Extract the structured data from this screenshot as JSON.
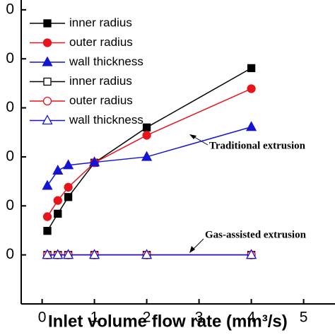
{
  "chart_data": {
    "type": "line",
    "xlabel": "Inlet volume flow rate (mm³/s)",
    "xlim": [
      -0.4,
      5.6
    ],
    "xticks": [
      0,
      1,
      2,
      3,
      4,
      5
    ],
    "ylim": [
      0,
      6.2
    ],
    "yticks": [
      {
        "value": 1,
        "label": "0"
      },
      {
        "value": 2,
        "label": "0"
      },
      {
        "value": 3,
        "label": "0"
      },
      {
        "value": 4,
        "label": "0"
      },
      {
        "value": 5,
        "label": "0"
      },
      {
        "value": 6,
        "label": "0"
      }
    ],
    "x": [
      0.1,
      0.3,
      0.5,
      1,
      2,
      4
    ],
    "series": [
      {
        "name": "inner radius",
        "color": "#000000",
        "marker": "square",
        "filled": true,
        "values": [
          1.49,
          1.84,
          2.18,
          2.88,
          3.6,
          4.81
        ]
      },
      {
        "name": "outer radius",
        "color": "#e8141c",
        "marker": "circle",
        "filled": true,
        "values": [
          1.78,
          2.11,
          2.38,
          2.88,
          3.44,
          4.39
        ]
      },
      {
        "name": "wall thickness",
        "color": "#1414d2",
        "marker": "triangle",
        "filled": true,
        "values": [
          2.41,
          2.72,
          2.83,
          2.89,
          3.0,
          3.61
        ]
      },
      {
        "name": "inner radius",
        "color": "#000000",
        "marker": "square",
        "filled": false,
        "values": [
          1.0,
          1.0,
          1.0,
          1.0,
          1.0,
          1.0
        ]
      },
      {
        "name": "outer radius",
        "color": "#e8141c",
        "marker": "circle",
        "filled": false,
        "values": [
          1.0,
          1.0,
          1.0,
          1.0,
          1.0,
          1.0
        ]
      },
      {
        "name": "wall thickness",
        "color": "#1414d2",
        "marker": "triangle",
        "filled": false,
        "values": [
          1.0,
          1.0,
          1.0,
          1.0,
          1.0,
          1.0
        ]
      }
    ],
    "annotations": [
      "Traditional extrusion",
      "Gas-assisted extrusion"
    ]
  }
}
